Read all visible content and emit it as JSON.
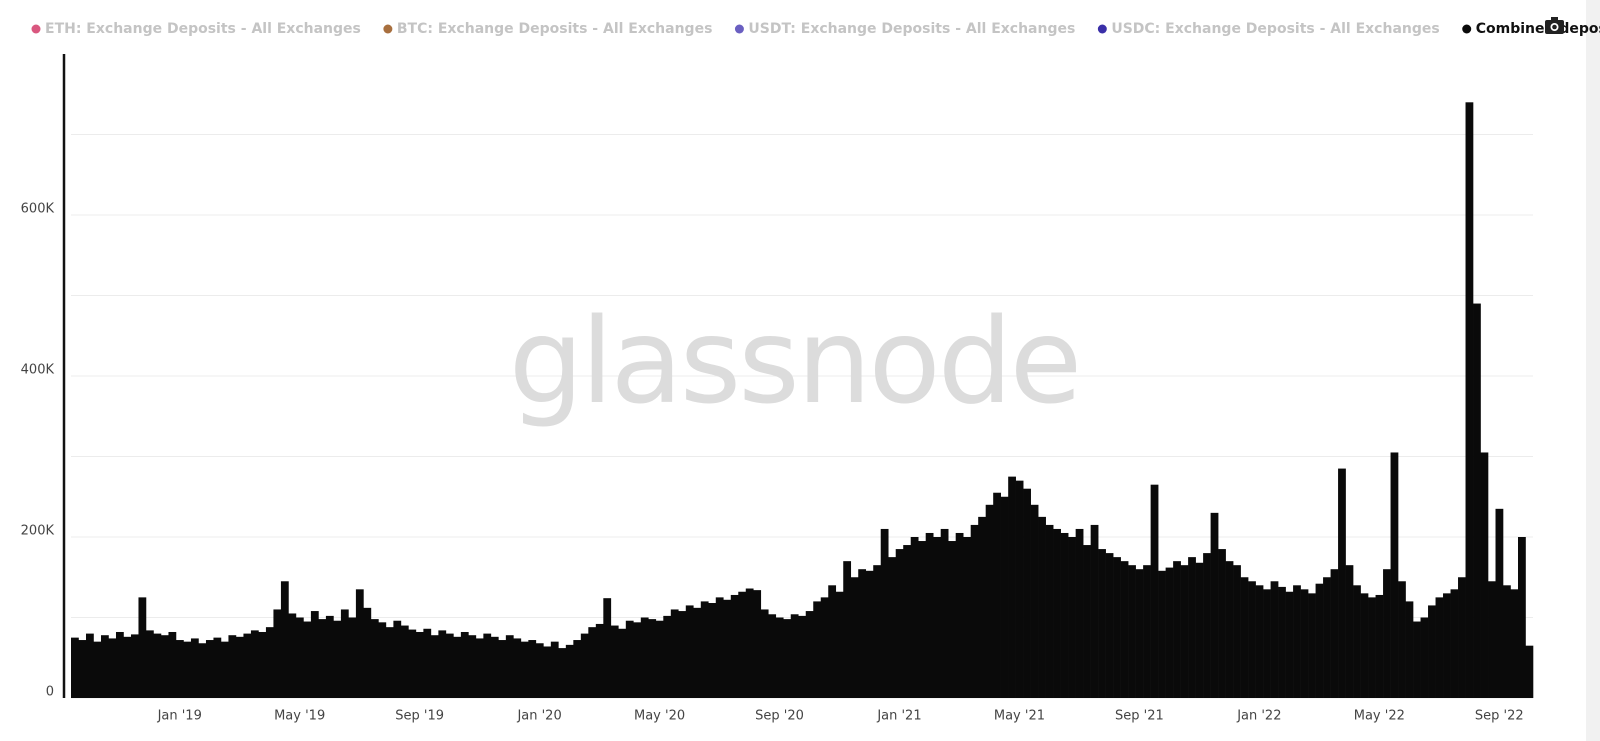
{
  "chart_data": {
    "type": "bar",
    "watermark": "glassnode",
    "legend_inactive": [
      {
        "name": "ETH: Exchange Deposits - All Exchanges",
        "color": "#d9577f"
      },
      {
        "name": "BTC: Exchange Deposits - All Exchanges",
        "color": "#a86f3e"
      },
      {
        "name": "USDT: Exchange Deposits - All Exchanges",
        "color": "#6a5fc1"
      },
      {
        "name": "USDC: Exchange Deposits - All Exchanges",
        "color": "#3a2fa8"
      }
    ],
    "categories": [
      null,
      null,
      null,
      null,
      null,
      null,
      null,
      null,
      null,
      null,
      null,
      null,
      null,
      null,
      "Jan '19",
      null,
      null,
      null,
      null,
      null,
      null,
      null,
      null,
      null,
      null,
      null,
      null,
      null,
      null,
      null,
      "May '19",
      null,
      null,
      null,
      null,
      null,
      null,
      null,
      null,
      null,
      null,
      null,
      null,
      null,
      null,
      null,
      "Sep '19",
      null,
      null,
      null,
      null,
      null,
      null,
      null,
      null,
      null,
      null,
      null,
      null,
      null,
      null,
      null,
      "Jan '20",
      null,
      null,
      null,
      null,
      null,
      null,
      null,
      null,
      null,
      null,
      null,
      null,
      null,
      null,
      null,
      "May '20",
      null,
      null,
      null,
      null,
      null,
      null,
      null,
      null,
      null,
      null,
      null,
      null,
      null,
      null,
      null,
      "Sep '20",
      null,
      null,
      null,
      null,
      null,
      null,
      null,
      null,
      null,
      null,
      null,
      null,
      null,
      null,
      null,
      "Jan '21",
      null,
      null,
      null,
      null,
      null,
      null,
      null,
      null,
      null,
      null,
      null,
      null,
      null,
      null,
      null,
      "May '21",
      null,
      null,
      null,
      null,
      null,
      null,
      null,
      null,
      null,
      null,
      null,
      null,
      null,
      null,
      null,
      "Sep '21",
      null,
      null,
      null,
      null,
      null,
      null,
      null,
      null,
      null,
      null,
      null,
      null,
      null,
      null,
      null,
      "Jan '22",
      null,
      null,
      null,
      null,
      null,
      null,
      null,
      null,
      null,
      null,
      null,
      null,
      null,
      null,
      null,
      "May '22",
      null,
      null,
      null,
      null,
      null,
      null,
      null,
      null,
      null,
      null,
      null,
      null,
      null,
      null,
      null,
      "Sep '22",
      null,
      null,
      null,
      null
    ],
    "series": [
      {
        "name": "Combined depositing wallets",
        "color": "#0a0a0a",
        "values": [
          75000,
          72000,
          80000,
          70000,
          78000,
          74000,
          82000,
          76000,
          79000,
          125000,
          84000,
          80000,
          78000,
          82000,
          72000,
          70000,
          74000,
          68000,
          72000,
          75000,
          70000,
          78000,
          76000,
          80000,
          84000,
          82000,
          88000,
          110000,
          145000,
          105000,
          100000,
          95000,
          108000,
          98000,
          102000,
          96000,
          110000,
          100000,
          135000,
          112000,
          98000,
          94000,
          88000,
          96000,
          90000,
          85000,
          82000,
          86000,
          78000,
          84000,
          80000,
          76000,
          82000,
          78000,
          74000,
          80000,
          76000,
          72000,
          78000,
          74000,
          70000,
          72000,
          68000,
          64000,
          70000,
          62000,
          66000,
          72000,
          80000,
          88000,
          92000,
          124000,
          90000,
          86000,
          96000,
          94000,
          100000,
          98000,
          96000,
          102000,
          110000,
          108000,
          115000,
          112000,
          120000,
          118000,
          125000,
          122000,
          128000,
          132000,
          136000,
          134000,
          110000,
          104000,
          100000,
          98000,
          104000,
          102000,
          108000,
          120000,
          125000,
          140000,
          132000,
          170000,
          150000,
          160000,
          158000,
          165000,
          210000,
          175000,
          185000,
          190000,
          200000,
          195000,
          205000,
          200000,
          210000,
          195000,
          205000,
          200000,
          215000,
          225000,
          240000,
          255000,
          250000,
          275000,
          270000,
          260000,
          240000,
          225000,
          215000,
          210000,
          205000,
          200000,
          210000,
          190000,
          215000,
          185000,
          180000,
          175000,
          170000,
          165000,
          160000,
          165000,
          265000,
          158000,
          162000,
          170000,
          165000,
          175000,
          168000,
          180000,
          230000,
          185000,
          170000,
          165000,
          150000,
          145000,
          140000,
          135000,
          145000,
          138000,
          132000,
          140000,
          135000,
          130000,
          142000,
          150000,
          160000,
          285000,
          165000,
          140000,
          130000,
          125000,
          128000,
          160000,
          305000,
          145000,
          120000,
          95000,
          100000,
          115000,
          125000,
          130000,
          135000,
          150000,
          740000,
          490000,
          305000,
          145000,
          235000,
          140000,
          135000,
          200000,
          65000
        ]
      }
    ],
    "ylim": [
      0,
      800000
    ],
    "yticks": [
      {
        "value": 0,
        "label": "0"
      },
      {
        "value": 200000,
        "label": "200K"
      },
      {
        "value": 400000,
        "label": "400K"
      },
      {
        "value": 600000,
        "label": "600K"
      }
    ],
    "minor_grid": [
      100000,
      300000,
      500000,
      700000
    ],
    "grid": true
  }
}
